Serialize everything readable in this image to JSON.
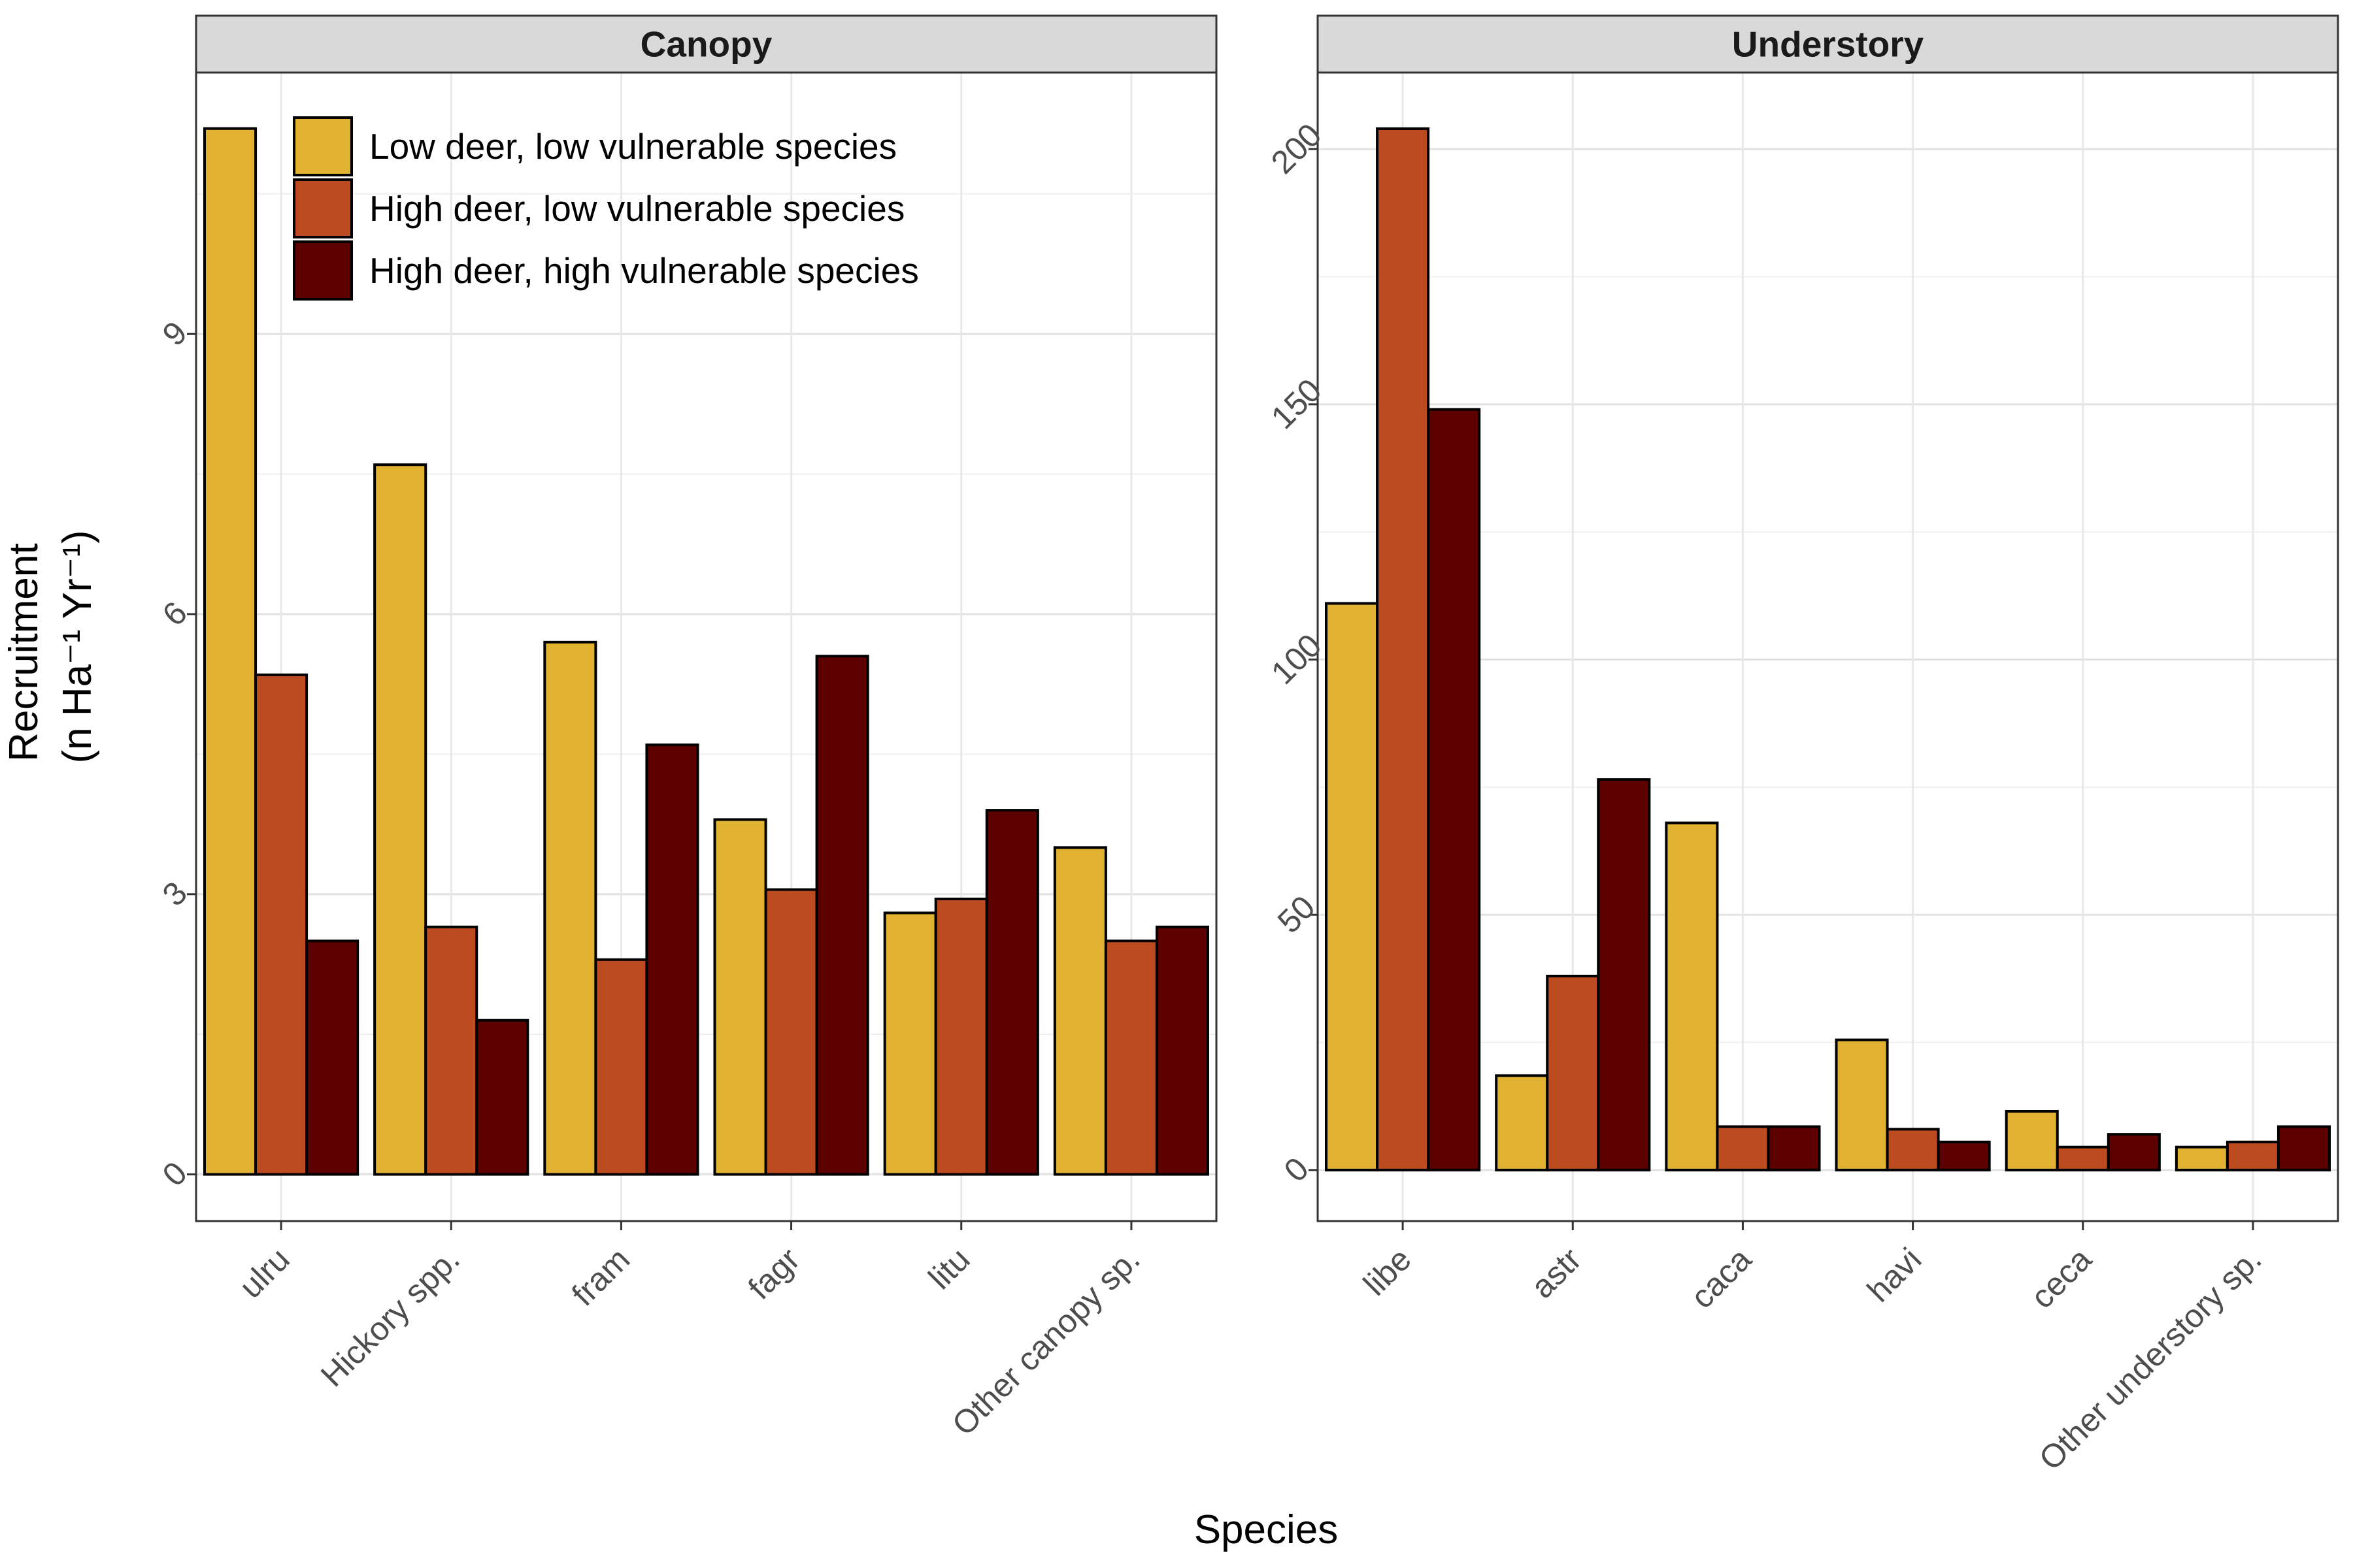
{
  "chart_data": {
    "type": "bar",
    "xlabel": "Species",
    "ylabel_line1": "Recruitment",
    "ylabel_line2": "(n Ha⁻¹ Yr⁻¹)",
    "legend_position": "top-left",
    "grid": true,
    "series_names": [
      "Low deer, low vulnerable species",
      "High deer, low vulnerable species",
      "High deer, high vulnerable species"
    ],
    "series_colors": [
      "#E1B132",
      "#BD4B20",
      "#5D0000"
    ],
    "panels": [
      {
        "title": "Canopy",
        "categories": [
          "ulru",
          "Hickory spp.",
          "fram",
          "fagr",
          "litu",
          "Other canopy sp."
        ],
        "ylim": [
          -0.5,
          11.8
        ],
        "yticks": [
          0,
          3,
          6,
          9
        ],
        "series": [
          {
            "name": "Low deer, low vulnerable species",
            "values": [
              11.2,
              7.6,
              5.7,
              3.8,
              2.8,
              3.5
            ]
          },
          {
            "name": "High deer, low vulnerable species",
            "values": [
              5.35,
              2.65,
              2.3,
              3.05,
              2.95,
              2.5
            ]
          },
          {
            "name": "High deer, high vulnerable species",
            "values": [
              2.5,
              1.65,
              4.6,
              5.55,
              3.9,
              2.65
            ]
          }
        ]
      },
      {
        "title": "Understory",
        "categories": [
          "libe",
          "astr",
          "caca",
          "havi",
          "ceca",
          "Other understory sp."
        ],
        "ylim": [
          -10,
          215
        ],
        "yticks": [
          0,
          50,
          100,
          150,
          200
        ],
        "series": [
          {
            "name": "Low deer, low vulnerable species",
            "values": [
              111,
              18.5,
              68,
              25.5,
              11.5,
              4.5
            ]
          },
          {
            "name": "High deer, low vulnerable species",
            "values": [
              204,
              38,
              8.5,
              8,
              4.5,
              5.5
            ]
          },
          {
            "name": "High deer, high vulnerable species",
            "values": [
              149,
              76.5,
              8.5,
              5.5,
              7,
              8.5
            ]
          }
        ]
      }
    ]
  }
}
